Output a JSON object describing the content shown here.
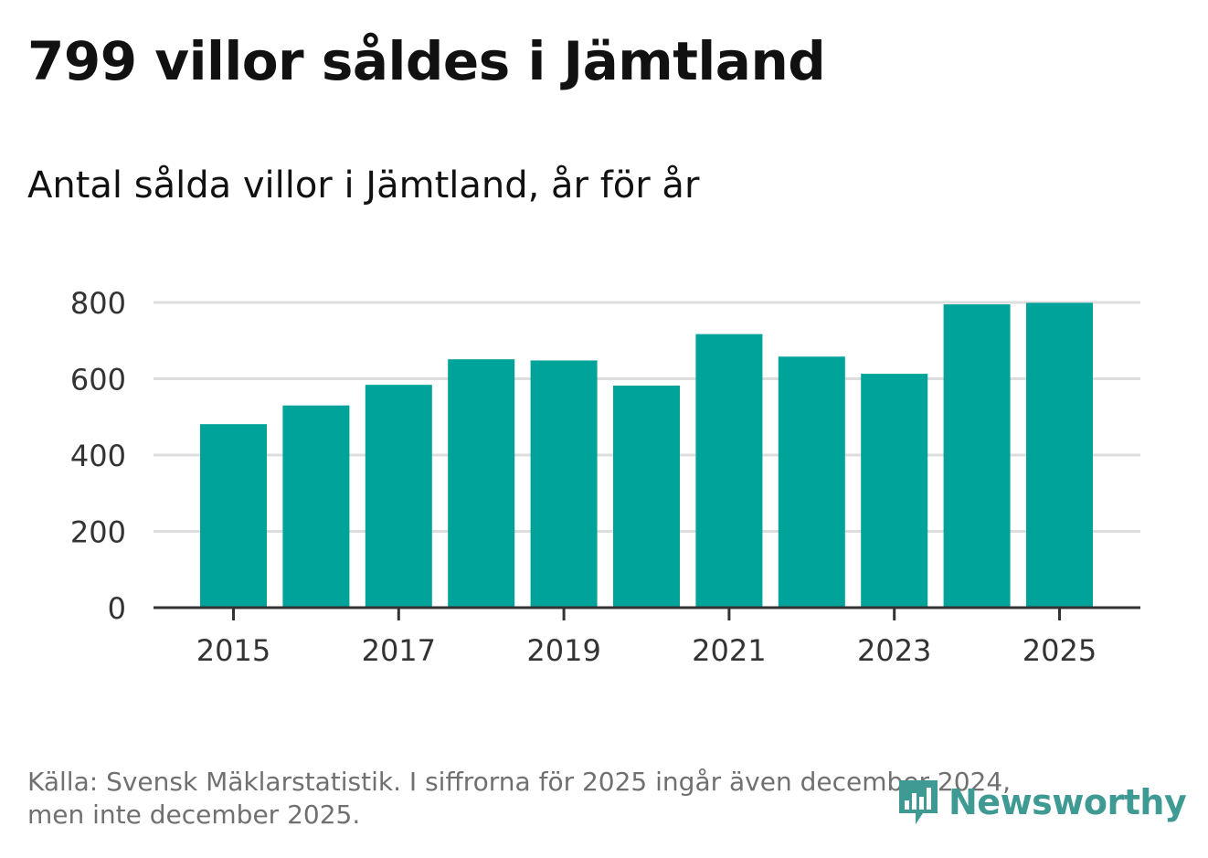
{
  "header": {
    "title": "799 villor såldes i Jämtland",
    "subtitle": "Antal sålda villor i Jämtland, år för år"
  },
  "colors": {
    "bar": "#00a39a",
    "grid": "#dddddd",
    "axis": "#333333",
    "logo": "#3f9a93"
  },
  "chart_data": {
    "type": "bar",
    "title": "Antal sålda villor i Jämtland, år för år",
    "xlabel": "",
    "ylabel": "",
    "categories": [
      "2015",
      "2016",
      "2017",
      "2018",
      "2019",
      "2020",
      "2021",
      "2022",
      "2023",
      "2024",
      "2025"
    ],
    "values": [
      481,
      530,
      584,
      651,
      648,
      582,
      717,
      658,
      613,
      795,
      799
    ],
    "ylim": [
      0,
      800
    ],
    "yticks": [
      "0",
      "200",
      "400",
      "600",
      "800"
    ],
    "xtick_labels": [
      "2015",
      "2017",
      "2019",
      "2021",
      "2023",
      "2025"
    ],
    "grid": true,
    "legend": "none"
  },
  "footer": {
    "source_line1": "Källa: Svensk Mäklarstatistik. I siffrorna för 2025 ingår även december 2024,",
    "source_line2": "men inte december 2025.",
    "logo_text": "Newsworthy",
    "logo_icon": "newsworthy-bar-chart-icon"
  }
}
